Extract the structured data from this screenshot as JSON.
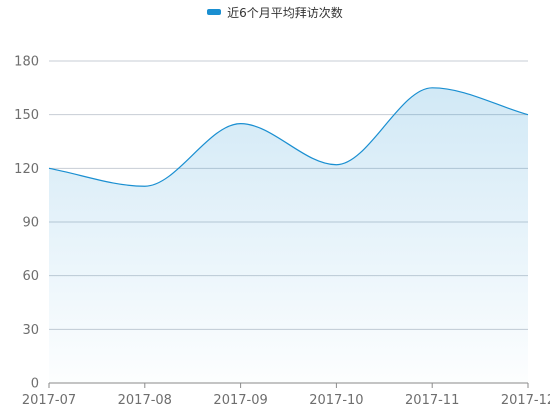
{
  "colors": {
    "series": "#1a8fd1",
    "grid": "#c7cdd4",
    "axis": "#8a8a8a"
  },
  "legend": {
    "label": "近6个月平均拜访次数"
  },
  "chart_data": {
    "type": "line",
    "smooth": true,
    "area_fill": true,
    "categories": [
      "2017-07",
      "2017-08",
      "2017-09",
      "2017-10",
      "2017-11",
      "2017-12"
    ],
    "series": [
      {
        "name": "近6个月平均拜访次数",
        "values": [
          120,
          110,
          145,
          122,
          165,
          150
        ]
      }
    ],
    "ylim": [
      0,
      180
    ],
    "yticks": [
      0,
      30,
      60,
      90,
      120,
      150,
      180
    ],
    "grid": true,
    "legend_position": "top-center",
    "title": "",
    "xlabel": "",
    "ylabel": ""
  }
}
